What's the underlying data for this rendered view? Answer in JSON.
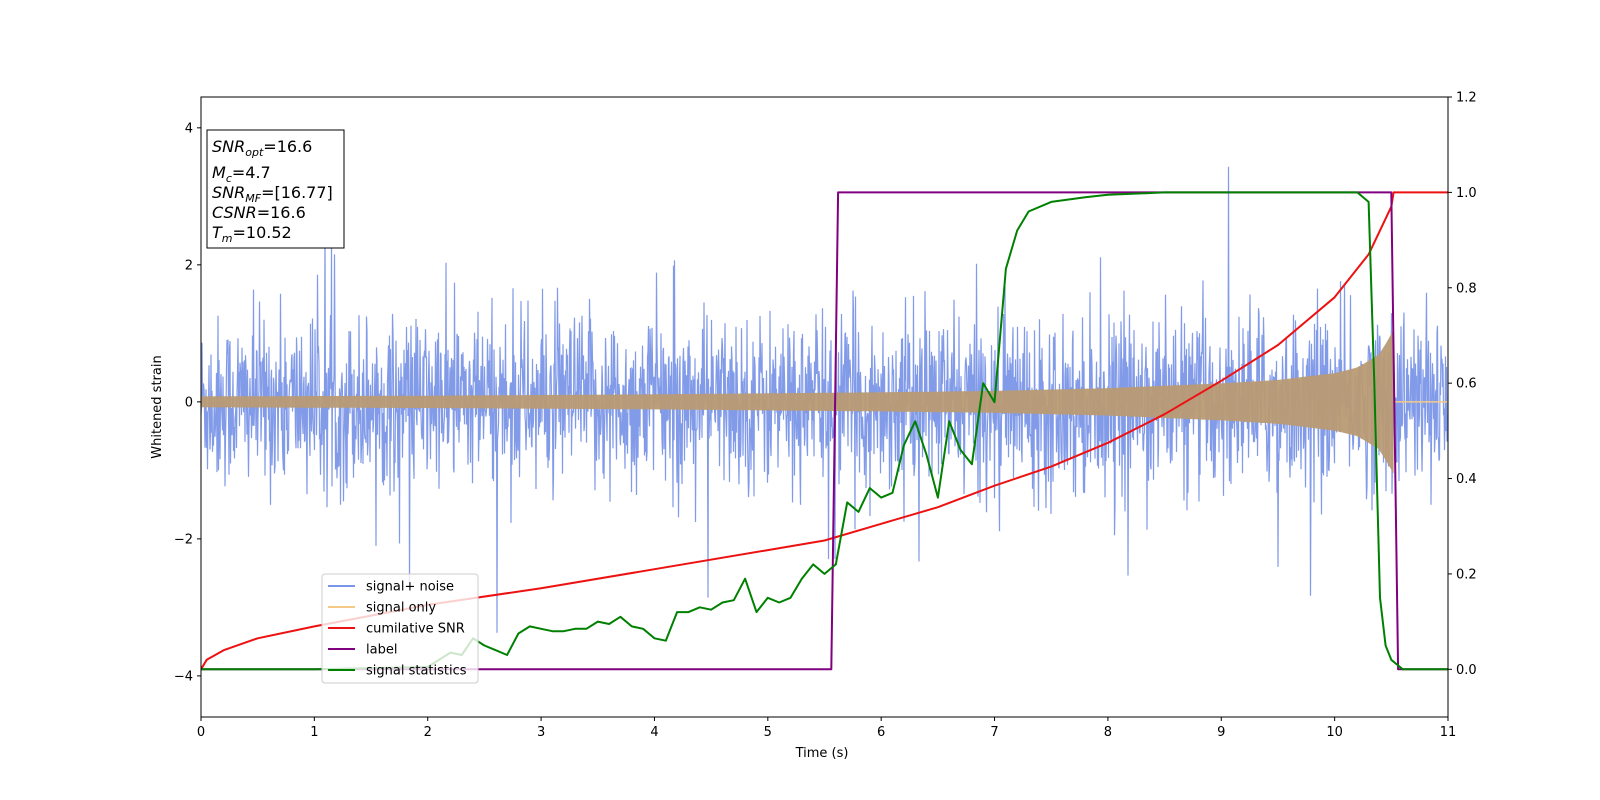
{
  "chart_data": {
    "type": "line",
    "xlabel": "Time (s)",
    "ylabel_left": "Whitened strain",
    "xlim": [
      0,
      11
    ],
    "ylim_left": [
      -4.6,
      4.45
    ],
    "ylim_right": [
      -0.1,
      1.2
    ],
    "x_ticks": [
      "0",
      "1",
      "2",
      "3",
      "4",
      "5",
      "6",
      "7",
      "8",
      "9",
      "10",
      "11"
    ],
    "y_left_ticks": [
      "4",
      "2",
      "0",
      "−2",
      "−4"
    ],
    "y_right_ticks": [
      "1.2",
      "1.0",
      "0.8",
      "0.6",
      "0.4",
      "0.2",
      "0.0"
    ],
    "grid": false,
    "legend_location": "lower-left",
    "info_box": {
      "snr_opt": {
        "sym": "SNR",
        "sub": "opt",
        "val": "=16.6"
      },
      "mc": {
        "sym": "M",
        "sub": "c",
        "val": "=4.7"
      },
      "snr_mf": {
        "sym": "SNR",
        "sub": "MF",
        "val": "=[16.77]"
      },
      "csnr": {
        "sym": "CSNR",
        "sub": "",
        "val": "=16.6"
      },
      "tm": {
        "sym": "T",
        "sub": "m",
        "val": "=10.52"
      }
    },
    "series": [
      {
        "name": "signal+ noise",
        "axis": "left",
        "color": "#7b96e8",
        "description": "noise band about ±1.5 with spikes up to about ±4"
      },
      {
        "name": "signal only",
        "axis": "left",
        "color": "#f5c987",
        "envelope": {
          "x": [
            0,
            2,
            4,
            6,
            7,
            8,
            9,
            9.5,
            10,
            10.2,
            10.4,
            10.52
          ],
          "amp": [
            0.08,
            0.09,
            0.11,
            0.14,
            0.16,
            0.2,
            0.27,
            0.32,
            0.42,
            0.5,
            0.7,
            1.05
          ]
        }
      },
      {
        "name": "cumilative SNR",
        "axis": "right",
        "color": "#ee1111",
        "x": [
          0,
          0.05,
          0.2,
          0.5,
          1,
          2,
          3,
          4,
          5,
          5.5,
          6,
          6.5,
          7,
          7.5,
          8,
          8.5,
          9,
          9.5,
          10,
          10.3,
          10.5,
          10.52,
          11
        ],
        "y": [
          0.0,
          0.02,
          0.04,
          0.065,
          0.09,
          0.135,
          0.17,
          0.21,
          0.25,
          0.27,
          0.305,
          0.34,
          0.385,
          0.425,
          0.475,
          0.535,
          0.605,
          0.68,
          0.78,
          0.87,
          0.97,
          1.0,
          1.0
        ]
      },
      {
        "name": "label",
        "axis": "right",
        "color": "#800080",
        "x": [
          0,
          5.56,
          5.62,
          10.5,
          10.56,
          11
        ],
        "y": [
          0,
          0,
          1,
          1,
          0,
          0
        ]
      },
      {
        "name": "signal statistics",
        "axis": "right",
        "color": "#008000",
        "x": [
          0,
          1,
          2,
          2.1,
          2.2,
          2.3,
          2.4,
          2.5,
          2.6,
          2.7,
          2.8,
          2.9,
          3.0,
          3.1,
          3.2,
          3.3,
          3.4,
          3.5,
          3.6,
          3.7,
          3.8,
          3.9,
          4.0,
          4.1,
          4.2,
          4.3,
          4.4,
          4.5,
          4.6,
          4.7,
          4.8,
          4.9,
          5.0,
          5.1,
          5.2,
          5.3,
          5.4,
          5.5,
          5.6,
          5.7,
          5.8,
          5.9,
          6.0,
          6.1,
          6.2,
          6.3,
          6.4,
          6.5,
          6.6,
          6.7,
          6.8,
          6.9,
          7.0,
          7.1,
          7.2,
          7.3,
          7.5,
          7.8,
          8.0,
          8.5,
          9.0,
          9.5,
          10.0,
          10.2,
          10.3,
          10.35,
          10.4,
          10.45,
          10.5,
          10.6,
          11
        ],
        "y": [
          0.0,
          0.0,
          0.005,
          0.02,
          0.035,
          0.03,
          0.065,
          0.05,
          0.04,
          0.03,
          0.075,
          0.09,
          0.085,
          0.08,
          0.08,
          0.085,
          0.085,
          0.1,
          0.095,
          0.11,
          0.09,
          0.085,
          0.065,
          0.06,
          0.12,
          0.12,
          0.13,
          0.125,
          0.14,
          0.145,
          0.19,
          0.12,
          0.15,
          0.14,
          0.15,
          0.19,
          0.22,
          0.2,
          0.22,
          0.35,
          0.33,
          0.38,
          0.36,
          0.37,
          0.47,
          0.52,
          0.45,
          0.36,
          0.52,
          0.46,
          0.43,
          0.6,
          0.56,
          0.84,
          0.92,
          0.96,
          0.98,
          0.99,
          0.995,
          1.0,
          1.0,
          1.0,
          1.0,
          1.0,
          0.98,
          0.6,
          0.15,
          0.05,
          0.02,
          0.0,
          0.0
        ]
      }
    ]
  }
}
